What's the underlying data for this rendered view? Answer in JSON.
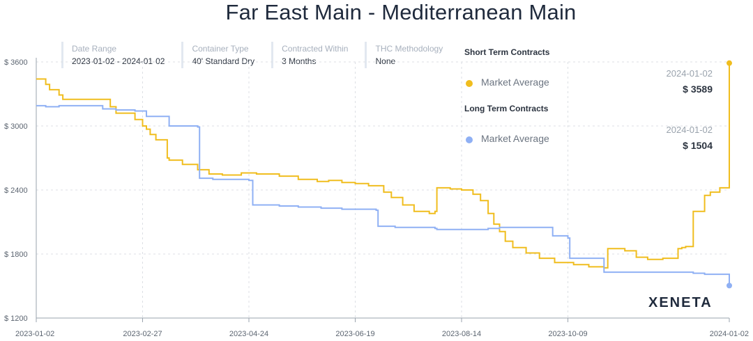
{
  "filters": [
    {
      "label": "Date Range",
      "value": "2023-01-02 - 2024-01-02"
    },
    {
      "label": "Container Type",
      "value": "40' Standard Dry"
    },
    {
      "label": "Contracted Within",
      "value": "3 Months"
    },
    {
      "label": "THC Methodology",
      "value": "None"
    }
  ],
  "legend": {
    "short_term": {
      "heading": "Short Term Contracts",
      "name": "Market Average",
      "date": "2024-01-02",
      "value": "$ 3589"
    },
    "long_term": {
      "heading": "Long Term Contracts",
      "name": "Market Average",
      "date": "2024-01-02",
      "value": "$ 1504"
    }
  },
  "brand": "XENETA",
  "colors": {
    "short_term": "#f0bd1e",
    "long_term": "#8fb0f4",
    "grid": "#dcdfe4"
  },
  "chart_data": {
    "type": "line",
    "title": "Far East Main - Mediterranean Main",
    "xlabel": "",
    "ylabel": "",
    "ylim": [
      1200,
      3600
    ],
    "yticks": [
      1200,
      1800,
      2400,
      3000,
      3600
    ],
    "ytick_labels": [
      "$ 1200",
      "$ 1800",
      "$ 2400",
      "$ 3000",
      "$ 3600"
    ],
    "xlim": [
      "2023-01-02",
      "2024-01-02"
    ],
    "xticks": [
      "2023-01-02",
      "2023-02-27",
      "2023-04-24",
      "2023-06-19",
      "2023-08-14",
      "2023-10-09",
      "2024-01-02"
    ],
    "grid": true,
    "legend_position": "top-right",
    "series": [
      {
        "name": "Short Term Contracts",
        "x": [
          "2023-01-02",
          "2023-01-07",
          "2023-01-09",
          "2023-01-14",
          "2023-01-16",
          "2023-02-05",
          "2023-02-10",
          "2023-02-13",
          "2023-02-23",
          "2023-02-27",
          "2023-03-01",
          "2023-03-03",
          "2023-03-06",
          "2023-03-12",
          "2023-03-13",
          "2023-03-20",
          "2023-03-28",
          "2023-04-03",
          "2023-04-10",
          "2023-04-20",
          "2023-04-28",
          "2023-05-10",
          "2023-05-20",
          "2023-05-30",
          "2023-06-05",
          "2023-06-12",
          "2023-06-19",
          "2023-06-26",
          "2023-07-04",
          "2023-07-08",
          "2023-07-14",
          "2023-07-20",
          "2023-07-28",
          "2023-07-31",
          "2023-08-01",
          "2023-08-08",
          "2023-08-14",
          "2023-08-20",
          "2023-08-24",
          "2023-08-28",
          "2023-08-31",
          "2023-09-03",
          "2023-09-06",
          "2023-09-10",
          "2023-09-17",
          "2023-09-24",
          "2023-10-02",
          "2023-10-12",
          "2023-10-20",
          "2023-10-28",
          "2023-10-30",
          "2023-11-06",
          "2023-11-08",
          "2023-11-14",
          "2023-11-20",
          "2023-11-28",
          "2023-12-06",
          "2023-12-08",
          "2023-12-10",
          "2023-12-14",
          "2023-12-20",
          "2023-12-23",
          "2023-12-28",
          "2024-01-02"
        ],
        "values": [
          3440,
          3390,
          3340,
          3290,
          3250,
          3250,
          3180,
          3120,
          3060,
          3000,
          2970,
          2920,
          2870,
          2700,
          2680,
          2640,
          2590,
          2550,
          2540,
          2560,
          2550,
          2530,
          2500,
          2480,
          2490,
          2470,
          2460,
          2440,
          2380,
          2330,
          2260,
          2200,
          2180,
          2200,
          2420,
          2410,
          2400,
          2360,
          2300,
          2180,
          2080,
          2010,
          1920,
          1860,
          1810,
          1760,
          1720,
          1700,
          1680,
          1670,
          1850,
          1850,
          1830,
          1770,
          1750,
          1760,
          1850,
          1860,
          1870,
          2200,
          2350,
          2380,
          2420,
          3589
        ]
      },
      {
        "name": "Long Term Contracts",
        "x": [
          "2023-01-02",
          "2023-01-07",
          "2023-01-14",
          "2023-02-01",
          "2023-02-06",
          "2023-02-13",
          "2023-02-23",
          "2023-03-01",
          "2023-03-13",
          "2023-03-28",
          "2023-03-29",
          "2023-04-05",
          "2023-04-24",
          "2023-04-26",
          "2023-05-10",
          "2023-05-20",
          "2023-06-01",
          "2023-06-12",
          "2023-06-19",
          "2023-06-30",
          "2023-07-01",
          "2023-07-10",
          "2023-07-31",
          "2023-08-01",
          "2023-08-20",
          "2023-08-28",
          "2023-09-03",
          "2023-09-28",
          "2023-10-01",
          "2023-10-09",
          "2023-10-10",
          "2023-10-26",
          "2023-10-28",
          "2023-11-20",
          "2023-12-14",
          "2023-12-20",
          "2024-01-02"
        ],
        "values": [
          3190,
          3180,
          3190,
          3190,
          3160,
          3150,
          3140,
          3090,
          3000,
          2990,
          2510,
          2500,
          2490,
          2260,
          2250,
          2240,
          2230,
          2220,
          2220,
          2210,
          2060,
          2050,
          2040,
          2030,
          2030,
          2040,
          2050,
          2050,
          1970,
          1950,
          1760,
          1760,
          1630,
          1630,
          1620,
          1610,
          1504
        ]
      }
    ]
  }
}
